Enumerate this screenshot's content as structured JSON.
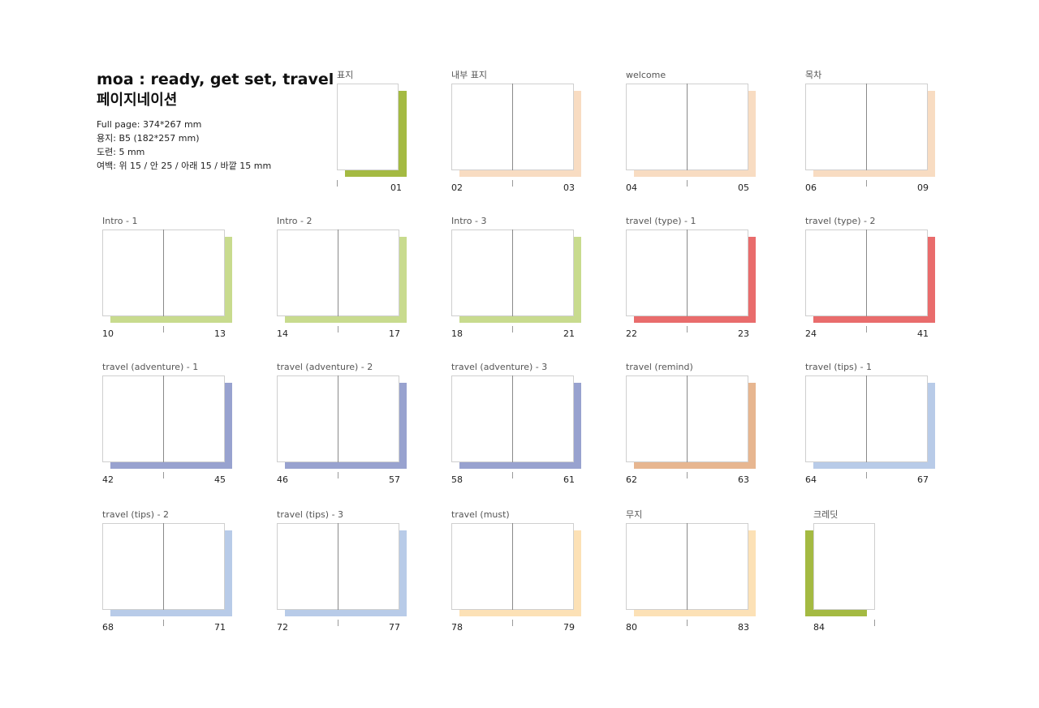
{
  "header": {
    "title": "moa : ready, get set, travel",
    "subtitle": "페이지네이션",
    "specs": [
      "Full page:  374*267 mm",
      "용지: B5 (182*257 mm)",
      "도련:  5 mm",
      "여백:  위 15 / 안 25 / 아래 15 / 바깥 15 mm"
    ]
  },
  "colors": {
    "green_dark": "#a4ba42",
    "green_light": "#c8db8e",
    "peach": "#f8dcc2",
    "red": "#e96c6c",
    "indigo": "#98a2cf",
    "salmon": "#e7b690",
    "blue": "#b8cbe8",
    "cream": "#fce1b6"
  },
  "spreads": [
    {
      "label": "표지",
      "type": "single-right",
      "color": "green_dark",
      "left": "",
      "right": "01"
    },
    {
      "label": "내부 표지",
      "type": "double",
      "color": "peach",
      "left": "02",
      "right": "03"
    },
    {
      "label": "welcome",
      "type": "double",
      "color": "peach",
      "left": "04",
      "right": "05"
    },
    {
      "label": "목차",
      "type": "double",
      "color": "peach",
      "left": "06",
      "right": "09"
    },
    {
      "label": "Intro - 1",
      "type": "double",
      "color": "green_light",
      "left": "10",
      "right": "13"
    },
    {
      "label": "Intro - 2",
      "type": "double",
      "color": "green_light",
      "left": "14",
      "right": "17"
    },
    {
      "label": "Intro - 3",
      "type": "double",
      "color": "green_light",
      "left": "18",
      "right": "21"
    },
    {
      "label": "travel (type) - 1",
      "type": "double",
      "color": "red",
      "left": "22",
      "right": "23"
    },
    {
      "label": "travel (type) - 2",
      "type": "double",
      "color": "red",
      "left": "24",
      "right": "41"
    },
    {
      "label": "travel (adventure) - 1",
      "type": "double",
      "color": "indigo",
      "left": "42",
      "right": "45"
    },
    {
      "label": "travel (adventure) - 2",
      "type": "double",
      "color": "indigo",
      "left": "46",
      "right": "57"
    },
    {
      "label": "travel (adventure) - 3",
      "type": "double",
      "color": "indigo",
      "left": "58",
      "right": "61"
    },
    {
      "label": "travel (remind)",
      "type": "double",
      "color": "salmon",
      "left": "62",
      "right": "63"
    },
    {
      "label": "travel (tips) - 1",
      "type": "double",
      "color": "blue",
      "left": "64",
      "right": "67"
    },
    {
      "label": "travel (tips) - 2",
      "type": "double",
      "color": "blue",
      "left": "68",
      "right": "71"
    },
    {
      "label": "travel (tips) - 3",
      "type": "double",
      "color": "blue",
      "left": "72",
      "right": "77"
    },
    {
      "label": "travel (must)",
      "type": "double",
      "color": "cream",
      "left": "78",
      "right": "79"
    },
    {
      "label": "무지",
      "type": "double",
      "color": "cream",
      "left": "80",
      "right": "83"
    },
    {
      "label": "크레딧",
      "type": "single-left",
      "color": "green_dark",
      "left": "84",
      "right": ""
    }
  ]
}
